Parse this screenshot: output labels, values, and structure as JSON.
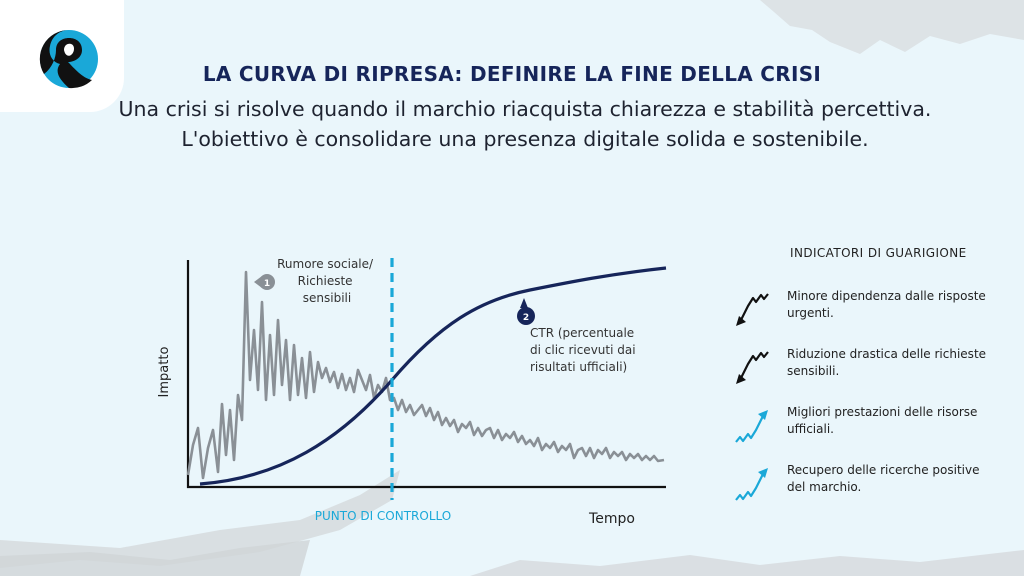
{
  "header": {
    "title": "LA CURVA DI RIPRESA: DEFINIRE LA FINE DELLA CRISI",
    "subtitle": "Una crisi si risolve quando il marchio riacquista chiarezza e stabilità percettiva. L'obiettivo è consolidare una presenza digitale solida e sostenibile."
  },
  "colors": {
    "navy": "#16255a",
    "accent": "#1aa8d8",
    "gray_line": "#8a9096",
    "background": "#eaf6fb"
  },
  "chart_data": {
    "type": "line",
    "xlabel": "Tempo",
    "ylabel": "Impatto",
    "checkpoint_label": "PUNTO DI CONTROLLO",
    "annotations": [
      {
        "marker": "1",
        "text": "Rumore sociale/ Richieste sensibili"
      },
      {
        "marker": "2",
        "text": "CTR (percentuale di clic ricevuti dai risultati ufficiali)"
      }
    ],
    "series": [
      {
        "name": "Rumore sociale/ Richieste sensibili",
        "shape": "volatile spike then decay",
        "color": "#8a9096"
      },
      {
        "name": "CTR (percentuale di clic ricevuti dai risultati ufficiali)",
        "shape": "s-curve rising",
        "color": "#16255a"
      }
    ]
  },
  "indicators": {
    "title": "INDICATORI DI GUARIGIONE",
    "items": [
      {
        "text": "Minore dipendenza dalle risposte urgenti.",
        "icon": "trend-down-icon",
        "color": "#111111"
      },
      {
        "text": "Riduzione drastica delle richieste sensibili.",
        "icon": "trend-down-icon",
        "color": "#111111"
      },
      {
        "text": "Migliori prestazioni delle risorse ufficiali.",
        "icon": "trend-up-icon",
        "color": "#1aa8d8"
      },
      {
        "text": "Recupero delle ricerche positive del marchio.",
        "icon": "trend-up-icon",
        "color": "#1aa8d8"
      }
    ]
  }
}
